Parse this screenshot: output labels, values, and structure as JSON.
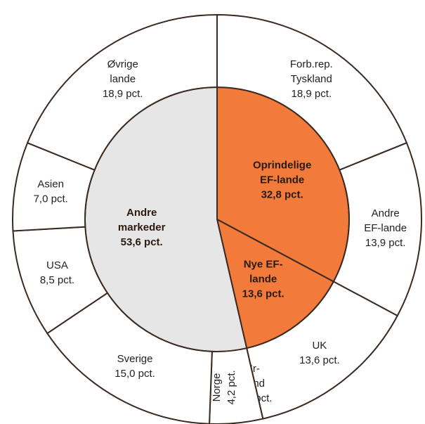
{
  "chart_data": {
    "type": "pie",
    "rings": [
      {
        "labels": [
          [
            "Oprindelige",
            "EF-lande"
          ],
          [
            "Nye EF-",
            "lande"
          ],
          [
            "Andre",
            "markeder"
          ]
        ],
        "values": [
          32.8,
          13.6,
          53.6
        ],
        "value_labels": [
          "32,8 pct.",
          "13,6 pct.",
          "53,6 pct."
        ],
        "colors": [
          "#f27a3b",
          "#f27a3b",
          "#e6e6e6"
        ]
      },
      {
        "labels": [
          [
            "Forb.rep.",
            "Tyskland"
          ],
          [
            "Andre",
            "EF-lande"
          ],
          [
            "UK"
          ],
          [
            "Ir-",
            "land"
          ],
          [
            "Norge"
          ],
          [
            "Sverige"
          ],
          [
            "USA"
          ],
          [
            "Asien"
          ],
          [
            "Øvrige",
            "lande"
          ]
        ],
        "values": [
          18.9,
          13.9,
          13.6,
          0.0,
          4.2,
          15.0,
          8.5,
          7.0,
          18.9
        ],
        "value_labels": [
          "18,9 pct.",
          "13,9 pct.",
          "13,6 pct.",
          "0,0 pct.",
          "4,2 pct.",
          "15,0 pct.",
          "8,5 pct.",
          "7,0 pct.",
          "18,9 pct."
        ],
        "colors": [
          "#ffffff",
          "#ffffff",
          "#ffffff",
          "#ffffff",
          "#ffffff",
          "#ffffff",
          "#ffffff",
          "#ffffff",
          "#ffffff"
        ]
      }
    ]
  }
}
